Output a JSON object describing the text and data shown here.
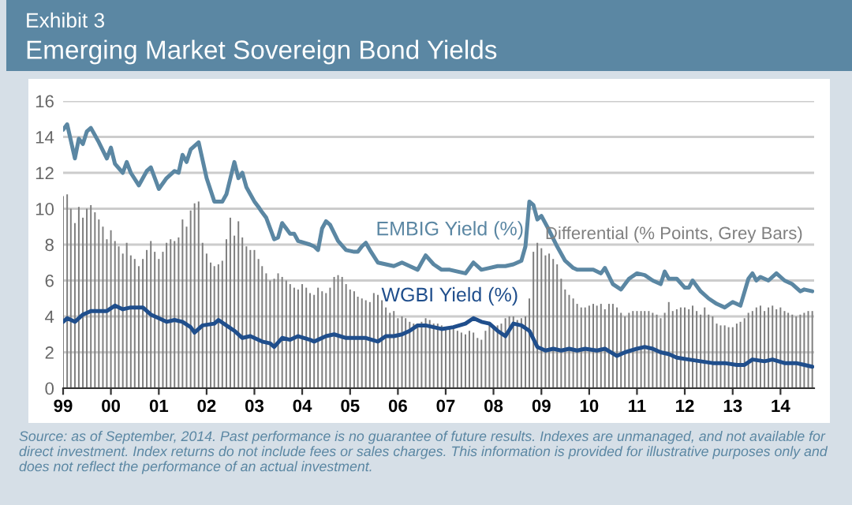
{
  "chart_data": {
    "type": "line",
    "title": "Exhibit 3",
    "subtitle": "Emerging Market Sovereign Bond Yields",
    "ylim": [
      0,
      16
    ],
    "yticks": [
      0,
      2,
      4,
      6,
      8,
      10,
      12,
      14,
      16
    ],
    "xlim": [
      "1999-01-01",
      "2014-09-15"
    ],
    "xticks": [
      {
        "value": "1999-01-01",
        "label": "99"
      },
      {
        "value": "2000-01-01",
        "label": "00"
      },
      {
        "value": "2001-01-01",
        "label": "01"
      },
      {
        "value": "2002-01-01",
        "label": "02"
      },
      {
        "value": "2003-01-01",
        "label": "03"
      },
      {
        "value": "2004-01-01",
        "label": "04"
      },
      {
        "value": "2005-01-01",
        "label": "05"
      },
      {
        "value": "2006-01-01",
        "label": "06"
      },
      {
        "value": "2007-01-01",
        "label": "07"
      },
      {
        "value": "2008-01-01",
        "label": "08"
      },
      {
        "value": "2009-01-01",
        "label": "09"
      },
      {
        "value": "2010-01-01",
        "label": "10"
      },
      {
        "value": "2011-01-01",
        "label": "11"
      },
      {
        "value": "2012-01-01",
        "label": "12"
      },
      {
        "value": "2013-01-01",
        "label": "13"
      },
      {
        "value": "2014-01-01",
        "label": "14"
      }
    ],
    "grid": "y",
    "legend": false,
    "series": [
      {
        "name": "Differential (% Points, Grey Bars)",
        "type": "bar",
        "color": "#7f7f7f",
        "x": [
          "1999-01",
          "1999-02",
          "1999-03",
          "1999-04",
          "1999-05",
          "1999-06",
          "1999-07",
          "1999-08",
          "1999-09",
          "1999-10",
          "1999-11",
          "1999-12",
          "2000-01",
          "2000-02",
          "2000-03",
          "2000-04",
          "2000-05",
          "2000-06",
          "2000-07",
          "2000-08",
          "2000-09",
          "2000-10",
          "2000-11",
          "2000-12",
          "2001-01",
          "2001-02",
          "2001-03",
          "2001-04",
          "2001-05",
          "2001-06",
          "2001-07",
          "2001-08",
          "2001-09",
          "2001-10",
          "2001-11",
          "2001-12",
          "2002-01",
          "2002-02",
          "2002-03",
          "2002-04",
          "2002-05",
          "2002-06",
          "2002-07",
          "2002-08",
          "2002-09",
          "2002-10",
          "2002-11",
          "2002-12",
          "2003-01",
          "2003-02",
          "2003-03",
          "2003-04",
          "2003-05",
          "2003-06",
          "2003-07",
          "2003-08",
          "2003-09",
          "2003-10",
          "2003-11",
          "2003-12",
          "2004-01",
          "2004-02",
          "2004-03",
          "2004-04",
          "2004-05",
          "2004-06",
          "2004-07",
          "2004-08",
          "2004-09",
          "2004-10",
          "2004-11",
          "2004-12",
          "2005-01",
          "2005-02",
          "2005-03",
          "2005-04",
          "2005-05",
          "2005-06",
          "2005-07",
          "2005-08",
          "2005-09",
          "2005-10",
          "2005-11",
          "2005-12",
          "2006-01",
          "2006-02",
          "2006-03",
          "2006-04",
          "2006-05",
          "2006-06",
          "2006-07",
          "2006-08",
          "2006-09",
          "2006-10",
          "2006-11",
          "2006-12",
          "2007-01",
          "2007-02",
          "2007-03",
          "2007-04",
          "2007-05",
          "2007-06",
          "2007-07",
          "2007-08",
          "2007-09",
          "2007-10",
          "2007-11",
          "2007-12",
          "2008-01",
          "2008-02",
          "2008-03",
          "2008-04",
          "2008-05",
          "2008-06",
          "2008-07",
          "2008-08",
          "2008-09",
          "2008-10",
          "2008-11",
          "2008-12",
          "2009-01",
          "2009-02",
          "2009-03",
          "2009-04",
          "2009-05",
          "2009-06",
          "2009-07",
          "2009-08",
          "2009-09",
          "2009-10",
          "2009-11",
          "2009-12",
          "2010-01",
          "2010-02",
          "2010-03",
          "2010-04",
          "2010-05",
          "2010-06",
          "2010-07",
          "2010-08",
          "2010-09",
          "2010-10",
          "2010-11",
          "2010-12",
          "2011-01",
          "2011-02",
          "2011-03",
          "2011-04",
          "2011-05",
          "2011-06",
          "2011-07",
          "2011-08",
          "2011-09",
          "2011-10",
          "2011-11",
          "2011-12",
          "2012-01",
          "2012-02",
          "2012-03",
          "2012-04",
          "2012-05",
          "2012-06",
          "2012-07",
          "2012-08",
          "2012-09",
          "2012-10",
          "2012-11",
          "2012-12",
          "2013-01",
          "2013-02",
          "2013-03",
          "2013-04",
          "2013-05",
          "2013-06",
          "2013-07",
          "2013-08",
          "2013-09",
          "2013-10",
          "2013-11",
          "2013-12",
          "2014-01",
          "2014-02",
          "2014-03",
          "2014-04",
          "2014-05",
          "2014-06",
          "2014-07",
          "2014-08",
          "2014-09"
        ],
        "values": [
          10.7,
          10.8,
          10.0,
          9.2,
          10.1,
          9.5,
          10.0,
          10.2,
          9.8,
          9.4,
          9.0,
          8.3,
          8.8,
          8.2,
          7.9,
          7.5,
          8.1,
          7.4,
          7.2,
          6.8,
          7.2,
          7.7,
          8.2,
          7.6,
          7.2,
          7.6,
          8.1,
          8.3,
          8.2,
          8.4,
          9.4,
          9.0,
          9.9,
          10.3,
          10.4,
          8.1,
          7.5,
          7.0,
          6.8,
          6.9,
          7.1,
          8.3,
          9.5,
          8.5,
          9.3,
          8.4,
          7.9,
          7.7,
          7.7,
          7.2,
          6.8,
          6.4,
          6.0,
          6.1,
          6.4,
          6.2,
          6.0,
          5.8,
          5.6,
          5.5,
          5.8,
          5.6,
          5.3,
          5.2,
          5.6,
          5.4,
          5.3,
          5.6,
          6.2,
          6.3,
          6.2,
          5.8,
          5.5,
          5.4,
          5.1,
          5.0,
          4.9,
          4.8,
          5.3,
          5.2,
          4.9,
          4.5,
          4.2,
          4.3,
          3.9,
          4.0,
          3.9,
          3.7,
          3.6,
          3.6,
          3.7,
          3.9,
          3.8,
          3.6,
          3.6,
          3.5,
          3.3,
          3.4,
          3.3,
          3.2,
          3.1,
          3.0,
          3.2,
          3.1,
          2.8,
          2.7,
          3.2,
          3.7,
          3.5,
          3.5,
          3.6,
          3.9,
          4.0,
          4.0,
          3.8,
          3.9,
          4.0,
          5.0,
          7.6,
          8.1,
          7.8,
          7.4,
          7.5,
          7.2,
          6.9,
          6.1,
          5.5,
          5.2,
          5.0,
          4.7,
          4.5,
          4.5,
          4.6,
          4.7,
          4.6,
          4.7,
          4.4,
          4.7,
          4.7,
          4.5,
          4.2,
          4.0,
          4.2,
          4.3,
          4.3,
          4.3,
          4.3,
          4.3,
          4.2,
          4.1,
          3.9,
          4.2,
          4.8,
          4.3,
          4.4,
          4.5,
          4.5,
          4.4,
          4.6,
          4.3,
          4.1,
          4.5,
          4.1,
          4.0,
          3.6,
          3.5,
          3.5,
          3.4,
          3.4,
          3.6,
          3.7,
          3.9,
          4.2,
          4.3,
          4.5,
          4.6,
          4.3,
          4.5,
          4.6,
          4.4,
          4.5,
          4.3,
          4.2,
          4.1,
          4.0,
          4.1,
          4.2,
          4.3,
          4.3
        ]
      },
      {
        "name": "EMBIG Yield (%)",
        "color": "#5b87a3",
        "x": [
          "1999-01",
          "1999-02",
          "1999-04",
          "1999-05",
          "1999-06",
          "1999-07",
          "1999-08",
          "1999-10",
          "1999-12",
          "2000-01",
          "2000-02",
          "2000-04",
          "2000-05",
          "2000-06",
          "2000-08",
          "2000-10",
          "2000-11",
          "2001-01",
          "2001-03",
          "2001-05",
          "2001-06",
          "2001-07",
          "2001-08",
          "2001-09",
          "2001-11",
          "2002-01",
          "2002-03",
          "2002-05",
          "2002-06",
          "2002-08",
          "2002-09",
          "2002-10",
          "2002-11",
          "2003-01",
          "2003-02",
          "2003-03",
          "2003-04",
          "2003-06",
          "2003-07",
          "2003-08",
          "2003-09",
          "2003-10",
          "2003-11",
          "2003-12",
          "2004-03",
          "2004-04",
          "2004-05",
          "2004-06",
          "2004-07",
          "2004-08",
          "2004-10",
          "2004-12",
          "2005-02",
          "2005-03",
          "2005-04",
          "2005-05",
          "2005-06",
          "2005-08",
          "2005-10",
          "2005-12",
          "2006-02",
          "2006-04",
          "2006-06",
          "2006-07",
          "2006-08",
          "2006-10",
          "2006-12",
          "2007-02",
          "2007-04",
          "2007-06",
          "2007-08",
          "2007-10",
          "2007-12",
          "2008-02",
          "2008-04",
          "2008-06",
          "2008-08",
          "2008-09",
          "2008-10",
          "2008-11",
          "2008-12",
          "2009-01",
          "2009-03",
          "2009-05",
          "2009-07",
          "2009-09",
          "2009-10",
          "2009-12",
          "2010-02",
          "2010-04",
          "2010-05",
          "2010-07",
          "2010-09",
          "2010-11",
          "2011-01",
          "2011-03",
          "2011-05",
          "2011-07",
          "2011-08",
          "2011-09",
          "2011-11",
          "2012-01",
          "2012-02",
          "2012-03",
          "2012-05",
          "2012-07",
          "2012-09",
          "2012-11",
          "2013-01",
          "2013-03",
          "2013-05",
          "2013-06",
          "2013-07",
          "2013-08",
          "2013-10",
          "2013-12",
          "2014-02",
          "2014-04",
          "2014-06",
          "2014-07",
          "2014-09"
        ],
        "values": [
          14.4,
          14.7,
          12.8,
          13.9,
          13.6,
          14.3,
          14.5,
          13.7,
          12.8,
          13.4,
          12.5,
          12.0,
          12.6,
          12.0,
          11.3,
          12.1,
          12.3,
          11.1,
          11.7,
          12.1,
          12.0,
          13.0,
          12.6,
          13.3,
          13.7,
          11.7,
          10.4,
          10.4,
          10.8,
          12.6,
          11.7,
          12.0,
          11.2,
          10.4,
          10.1,
          9.8,
          9.5,
          8.3,
          8.4,
          9.2,
          8.9,
          8.6,
          8.6,
          8.2,
          8.0,
          7.9,
          7.7,
          8.9,
          9.3,
          9.1,
          8.2,
          7.7,
          7.6,
          7.6,
          7.9,
          8.1,
          7.7,
          7.0,
          6.9,
          6.8,
          7.0,
          6.8,
          6.6,
          7.0,
          7.4,
          6.9,
          6.6,
          6.6,
          6.5,
          6.4,
          7.0,
          6.6,
          6.7,
          6.8,
          6.8,
          6.9,
          7.1,
          7.9,
          10.4,
          10.2,
          9.4,
          9.6,
          8.8,
          7.9,
          7.1,
          6.7,
          6.6,
          6.6,
          6.6,
          6.4,
          6.7,
          5.8,
          5.5,
          6.1,
          6.4,
          6.3,
          6.0,
          5.8,
          6.5,
          6.1,
          6.1,
          5.6,
          5.6,
          6.0,
          5.4,
          5.0,
          4.7,
          4.5,
          4.8,
          4.6,
          6.1,
          6.4,
          6.0,
          6.2,
          6.0,
          6.4,
          6.0,
          5.8,
          5.4,
          5.5,
          5.4
        ]
      },
      {
        "name": "WGBI Yield (%)",
        "color": "#1f4e8c",
        "x": [
          "1999-01",
          "1999-02",
          "1999-04",
          "1999-06",
          "1999-08",
          "1999-12",
          "2000-02",
          "2000-04",
          "2000-06",
          "2000-09",
          "2000-11",
          "2001-01",
          "2001-03",
          "2001-05",
          "2001-07",
          "2001-09",
          "2001-10",
          "2001-12",
          "2002-03",
          "2002-04",
          "2002-06",
          "2002-08",
          "2002-10",
          "2002-12",
          "2003-03",
          "2003-05",
          "2003-06",
          "2003-08",
          "2003-10",
          "2003-12",
          "2004-03",
          "2004-04",
          "2004-07",
          "2004-09",
          "2004-12",
          "2005-03",
          "2005-05",
          "2005-08",
          "2005-10",
          "2005-12",
          "2006-02",
          "2006-04",
          "2006-06",
          "2006-08",
          "2006-10",
          "2006-12",
          "2007-03",
          "2007-06",
          "2007-08",
          "2007-10",
          "2007-12",
          "2008-02",
          "2008-04",
          "2008-06",
          "2008-08",
          "2008-10",
          "2008-12",
          "2009-02",
          "2009-04",
          "2009-06",
          "2009-08",
          "2009-10",
          "2009-12",
          "2010-03",
          "2010-05",
          "2010-08",
          "2010-10",
          "2011-01",
          "2011-03",
          "2011-05",
          "2011-07",
          "2011-09",
          "2011-11",
          "2012-02",
          "2012-05",
          "2012-08",
          "2012-11",
          "2013-02",
          "2013-04",
          "2013-06",
          "2013-09",
          "2013-11",
          "2014-02",
          "2014-05",
          "2014-09"
        ],
        "values": [
          3.7,
          3.9,
          3.7,
          4.1,
          4.3,
          4.3,
          4.6,
          4.4,
          4.5,
          4.5,
          4.1,
          3.9,
          3.7,
          3.8,
          3.7,
          3.4,
          3.1,
          3.5,
          3.6,
          3.8,
          3.5,
          3.2,
          2.8,
          2.9,
          2.6,
          2.5,
          2.3,
          2.8,
          2.7,
          2.9,
          2.7,
          2.6,
          2.9,
          3.0,
          2.8,
          2.8,
          2.8,
          2.6,
          2.9,
          2.9,
          3.0,
          3.2,
          3.5,
          3.5,
          3.4,
          3.3,
          3.4,
          3.6,
          3.9,
          3.7,
          3.6,
          3.2,
          2.9,
          3.6,
          3.5,
          3.2,
          2.3,
          2.1,
          2.2,
          2.1,
          2.2,
          2.1,
          2.2,
          2.1,
          2.2,
          1.8,
          2.0,
          2.2,
          2.3,
          2.2,
          2.0,
          1.9,
          1.7,
          1.6,
          1.5,
          1.4,
          1.4,
          1.3,
          1.3,
          1.6,
          1.5,
          1.6,
          1.4,
          1.4,
          1.2
        ]
      }
    ],
    "annotations": [
      "Source: as of September, 2014. Past performance is no guarantee of future results. Indexes are unmanaged, and not available for direct investment. Index returns do not include fees or sales charges. This information is provided for illustrative purposes only and does not reflect the performance of an actual investment."
    ]
  }
}
